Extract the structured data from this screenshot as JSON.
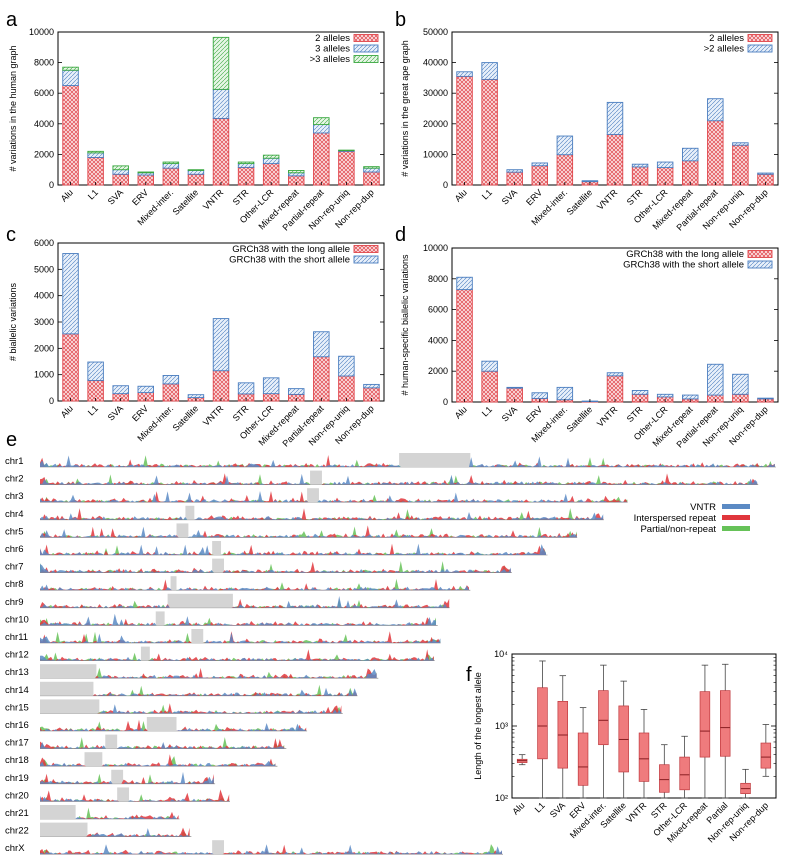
{
  "colors": {
    "red": "#e0454b",
    "blue": "#4a7dbf",
    "green": "#3aa840",
    "box_fill": "#ef7b7d",
    "gap": "#d4d4d4",
    "track_blue": "#5b8ac4",
    "track_red": "#e0363c",
    "track_green": "#66c258"
  },
  "panel_labels": [
    "a",
    "b",
    "c",
    "d",
    "e",
    "f"
  ],
  "chart_data": [
    {
      "id": "a",
      "type": "bar",
      "stacked": true,
      "ylabel": "# variations in the human graph",
      "ylim": [
        0,
        10000
      ],
      "yticks": [
        0,
        2000,
        4000,
        6000,
        8000,
        10000
      ],
      "categories": [
        "Alu",
        "L1",
        "SVA",
        "ERV",
        "Mixed-inter.",
        "Satellite",
        "VNTR",
        "STR",
        "Other-LCR",
        "Mixed-repeat",
        "Partial-repeat",
        "Non-rep-uniq",
        "Non-rep-dup"
      ],
      "series": [
        {
          "name": "2 alleles",
          "color": "red",
          "values": [
            6500,
            1800,
            700,
            650,
            1100,
            700,
            4350,
            1150,
            1400,
            600,
            3400,
            2200,
            850
          ]
        },
        {
          "name": "3 alleles",
          "color": "blue",
          "values": [
            1000,
            300,
            300,
            150,
            300,
            250,
            1900,
            250,
            350,
            200,
            550,
            50,
            250
          ]
        },
        {
          "name": ">3 alleles",
          "color": "green",
          "values": [
            200,
            100,
            250,
            50,
            100,
            50,
            3400,
            100,
            200,
            150,
            450,
            30,
            100
          ]
        }
      ]
    },
    {
      "id": "b",
      "type": "bar",
      "stacked": true,
      "ylabel": "# variations in the great ape graph",
      "ylim": [
        0,
        50000
      ],
      "yticks": [
        0,
        10000,
        20000,
        30000,
        40000,
        50000
      ],
      "categories": [
        "Alu",
        "L1",
        "SVA",
        "ERV",
        "Mixed-inter.",
        "Satellite",
        "VNTR",
        "STR",
        "Other-LCR",
        "Mixed-repeat",
        "Partial-repeat",
        "Non-rep-uniq",
        "Non-rep-dup"
      ],
      "series": [
        {
          "name": "2 alleles",
          "color": "red",
          "values": [
            35500,
            34500,
            4200,
            6300,
            9900,
            1100,
            16500,
            5900,
            5700,
            7900,
            21000,
            13000,
            3500
          ]
        },
        {
          "name": ">2 alleles",
          "color": "blue",
          "values": [
            1500,
            5500,
            800,
            900,
            6100,
            300,
            10500,
            900,
            1800,
            4100,
            7200,
            800,
            400
          ]
        }
      ]
    },
    {
      "id": "c",
      "type": "bar",
      "stacked": true,
      "ylabel": "# biallelic variations",
      "ylim": [
        0,
        6000
      ],
      "yticks": [
        0,
        1000,
        2000,
        3000,
        4000,
        5000,
        6000
      ],
      "categories": [
        "Alu",
        "L1",
        "SVA",
        "ERV",
        "Mixed-inter.",
        "Satellite",
        "VNTR",
        "STR",
        "Other-LCR",
        "Mixed-repeat",
        "Partial-repeat",
        "Non-rep-uniq",
        "Non-rep-dup"
      ],
      "series": [
        {
          "name": "GRCh38 with the long allele",
          "color": "red",
          "values": [
            2550,
            780,
            280,
            320,
            650,
            130,
            1150,
            270,
            280,
            250,
            1680,
            950,
            500
          ]
        },
        {
          "name": "GRCh38 with the short allele",
          "color": "blue",
          "values": [
            3050,
            700,
            300,
            240,
            320,
            110,
            1980,
            420,
            600,
            220,
            950,
            750,
            130
          ]
        }
      ]
    },
    {
      "id": "d",
      "type": "bar",
      "stacked": true,
      "ylabel": "# human-specific biallelic variations",
      "ylim": [
        0,
        10000
      ],
      "yticks": [
        0,
        2000,
        4000,
        6000,
        8000,
        10000
      ],
      "categories": [
        "Alu",
        "L1",
        "SVA",
        "ERV",
        "Mixed-inter.",
        "Satellite",
        "VNTR",
        "STR",
        "Other-LCR",
        "Mixed-repeat",
        "Partial-repeat",
        "Non-rep-uniq",
        "Non-rep-dup"
      ],
      "series": [
        {
          "name": "GRCh38 with the long allele",
          "color": "red",
          "values": [
            7300,
            2000,
            900,
            230,
            150,
            30,
            1700,
            500,
            330,
            200,
            450,
            500,
            200
          ]
        },
        {
          "name": "GRCh38 with the short allele",
          "color": "blue",
          "values": [
            800,
            650,
            50,
            370,
            800,
            30,
            200,
            250,
            170,
            250,
            2000,
            1300,
            50
          ]
        }
      ]
    },
    {
      "id": "e",
      "type": "area",
      "legend": [
        "VNTR",
        "Interspersed repeat",
        "Partial/non-repeat"
      ],
      "chromosomes": [
        {
          "name": "chr1",
          "len": 248,
          "gaps": [
            [
              121,
              145
            ]
          ]
        },
        {
          "name": "chr2",
          "len": 242,
          "gaps": [
            [
              91,
              95
            ]
          ]
        },
        {
          "name": "chr3",
          "len": 198,
          "gaps": [
            [
              90,
              94
            ]
          ]
        },
        {
          "name": "chr4",
          "len": 190,
          "gaps": [
            [
              49,
              52
            ]
          ]
        },
        {
          "name": "chr5",
          "len": 181,
          "gaps": [
            [
              46,
              50
            ]
          ]
        },
        {
          "name": "chr6",
          "len": 171,
          "gaps": [
            [
              58,
              61
            ]
          ]
        },
        {
          "name": "chr7",
          "len": 159,
          "gaps": [
            [
              58,
              62
            ]
          ]
        },
        {
          "name": "chr8",
          "len": 145,
          "gaps": [
            [
              44,
              46
            ]
          ]
        },
        {
          "name": "chr9",
          "len": 138,
          "gaps": [
            [
              43,
              65
            ]
          ]
        },
        {
          "name": "chr10",
          "len": 134,
          "gaps": [
            [
              39,
              42
            ]
          ]
        },
        {
          "name": "chr11",
          "len": 135,
          "gaps": [
            [
              51,
              55
            ]
          ]
        },
        {
          "name": "chr12",
          "len": 133,
          "gaps": [
            [
              34,
              37
            ]
          ]
        },
        {
          "name": "chr13",
          "len": 114,
          "gaps": [
            [
              0,
              19
            ]
          ]
        },
        {
          "name": "chr14",
          "len": 107,
          "gaps": [
            [
              0,
              18
            ]
          ]
        },
        {
          "name": "chr15",
          "len": 102,
          "gaps": [
            [
              0,
              20
            ]
          ]
        },
        {
          "name": "chr16",
          "len": 90,
          "gaps": [
            [
              36,
              46
            ]
          ]
        },
        {
          "name": "chr17",
          "len": 83,
          "gaps": [
            [
              22,
              26
            ]
          ]
        },
        {
          "name": "chr18",
          "len": 80,
          "gaps": [
            [
              15,
              21
            ]
          ]
        },
        {
          "name": "chr19",
          "len": 59,
          "gaps": [
            [
              24,
              28
            ]
          ]
        },
        {
          "name": "chr20",
          "len": 64,
          "gaps": [
            [
              26,
              30
            ]
          ]
        },
        {
          "name": "chr21",
          "len": 47,
          "gaps": [
            [
              0,
              12
            ]
          ]
        },
        {
          "name": "chr22",
          "len": 51,
          "gaps": [
            [
              0,
              16
            ]
          ]
        },
        {
          "name": "chrX",
          "len": 156,
          "gaps": [
            [
              58,
              62
            ]
          ]
        }
      ]
    },
    {
      "id": "f",
      "type": "box",
      "yscale": "log",
      "ylabel": "Length of the longest allele",
      "ylim": [
        100,
        10000
      ],
      "ytick_labels": [
        "10²",
        "10³",
        "10⁴"
      ],
      "categories": [
        "Alu",
        "L1",
        "SVA",
        "ERV",
        "Mixed-inter.",
        "Satellite",
        "VNTR",
        "STR",
        "Other-LCR",
        "Mixed-repeat",
        "Partial",
        "Non-rep-uniq",
        "Non-rep-dup"
      ],
      "boxes": [
        {
          "min": 290,
          "q1": 310,
          "median": 330,
          "q3": 345,
          "max": 400
        },
        {
          "min": 100,
          "q1": 350,
          "median": 1000,
          "q3": 3400,
          "max": 8000
        },
        {
          "min": 100,
          "q1": 260,
          "median": 750,
          "q3": 2200,
          "max": 5000
        },
        {
          "min": 100,
          "q1": 150,
          "median": 270,
          "q3": 800,
          "max": 1800
        },
        {
          "min": 100,
          "q1": 550,
          "median": 1200,
          "q3": 3100,
          "max": 7000
        },
        {
          "min": 100,
          "q1": 230,
          "median": 650,
          "q3": 1900,
          "max": 4200
        },
        {
          "min": 100,
          "q1": 170,
          "median": 350,
          "q3": 800,
          "max": 1700
        },
        {
          "min": 100,
          "q1": 120,
          "median": 180,
          "q3": 290,
          "max": 550
        },
        {
          "min": 100,
          "q1": 130,
          "median": 210,
          "q3": 370,
          "max": 720
        },
        {
          "min": 100,
          "q1": 370,
          "median": 850,
          "q3": 3000,
          "max": 7000
        },
        {
          "min": 100,
          "q1": 380,
          "median": 950,
          "q3": 3100,
          "max": 7200
        },
        {
          "min": 100,
          "q1": 115,
          "median": 135,
          "q3": 160,
          "max": 250
        },
        {
          "min": 200,
          "q1": 260,
          "median": 370,
          "q3": 580,
          "max": 1050
        }
      ]
    }
  ]
}
